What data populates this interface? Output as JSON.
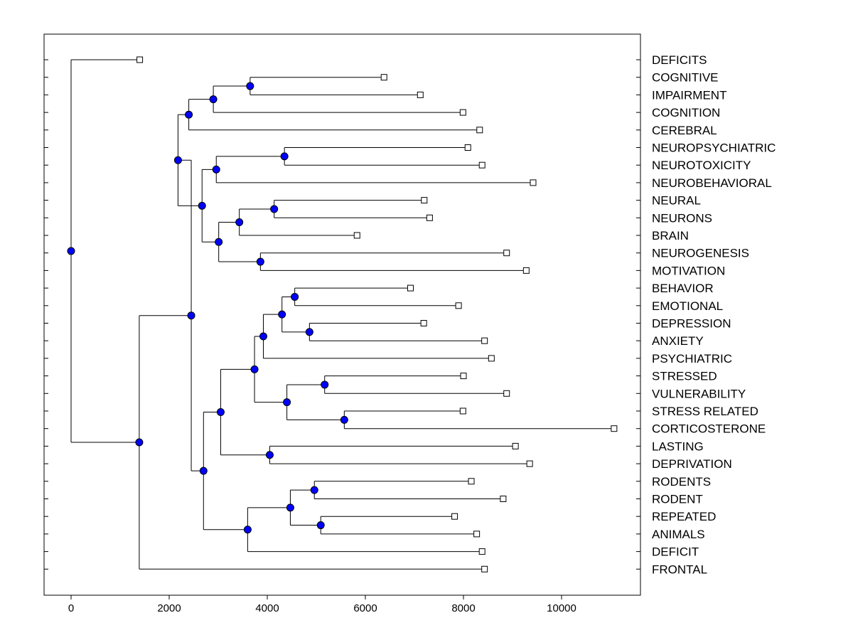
{
  "chart_data": {
    "type": "dendrogram",
    "title": "",
    "xlabel": "",
    "ylabel": "",
    "xlim": [
      -550,
      11600
    ],
    "xticks": [
      0,
      2000,
      4000,
      6000,
      8000,
      10000
    ],
    "xtick_labels": [
      "0",
      "2000",
      "4000",
      "6000",
      "8000",
      "10000"
    ],
    "colors": {
      "node": "#0000ff",
      "line": "#000000",
      "leaf_marker": "#ffffff"
    },
    "leaves": [
      {
        "label": "DEFICITS",
        "value": 1400
      },
      {
        "label": "COGNITIVE",
        "value": 6380
      },
      {
        "label": "IMPAIRMENT",
        "value": 7120
      },
      {
        "label": "COGNITION",
        "value": 7990
      },
      {
        "label": "CEREBRAL",
        "value": 8330
      },
      {
        "label": "NEUROPSYCHIATRIC",
        "value": 8090
      },
      {
        "label": "NEUROTOXICITY",
        "value": 8380
      },
      {
        "label": "NEUROBEHAVIORAL",
        "value": 9420
      },
      {
        "label": "NEURAL",
        "value": 7200
      },
      {
        "label": "NEURONS",
        "value": 7310
      },
      {
        "label": "BRAIN",
        "value": 5830
      },
      {
        "label": "NEUROGENESIS",
        "value": 8880
      },
      {
        "label": "MOTIVATION",
        "value": 9280
      },
      {
        "label": "BEHAVIOR",
        "value": 6920
      },
      {
        "label": "EMOTIONAL",
        "value": 7900
      },
      {
        "label": "DEPRESSION",
        "value": 7190
      },
      {
        "label": "ANXIETY",
        "value": 8430
      },
      {
        "label": "PSYCHIATRIC",
        "value": 8570
      },
      {
        "label": "STRESSED",
        "value": 8000
      },
      {
        "label": "VULNERABILITY",
        "value": 8880
      },
      {
        "label": "STRESS RELATED",
        "value": 7990
      },
      {
        "label": "CORTICOSTERONE",
        "value": 11070
      },
      {
        "label": "LASTING",
        "value": 9060
      },
      {
        "label": "DEPRIVATION",
        "value": 9350
      },
      {
        "label": "RODENTS",
        "value": 8160
      },
      {
        "label": "RODENT",
        "value": 8810
      },
      {
        "label": "REPEATED",
        "value": 7820
      },
      {
        "label": "ANIMALS",
        "value": 8270
      },
      {
        "label": "DEFICIT",
        "value": 8380
      },
      {
        "label": "FRONTAL",
        "value": 8430
      }
    ],
    "nodes": [
      {
        "id": "n_cog_imp",
        "value": 3650,
        "children": [
          "L1",
          "L2"
        ]
      },
      {
        "id": "n_cog3",
        "value": 2900,
        "children": [
          "n_cog_imp",
          "L3"
        ]
      },
      {
        "id": "n_cog4",
        "value": 2400,
        "children": [
          "n_cog3",
          "L4"
        ]
      },
      {
        "id": "n_npsy",
        "value": 4350,
        "children": [
          "L5",
          "L6"
        ]
      },
      {
        "id": "n_neuro3",
        "value": 2960,
        "children": [
          "n_npsy",
          "L7"
        ]
      },
      {
        "id": "n_neural",
        "value": 4140,
        "children": [
          "L8",
          "L9"
        ]
      },
      {
        "id": "n_brain3",
        "value": 3430,
        "children": [
          "n_neural",
          "L10"
        ]
      },
      {
        "id": "n_neurogen",
        "value": 3860,
        "children": [
          "L11",
          "L12"
        ]
      },
      {
        "id": "n_brain5",
        "value": 3010,
        "children": [
          "n_brain3",
          "n_neurogen"
        ]
      },
      {
        "id": "n_neuro8",
        "value": 2670,
        "children": [
          "n_neuro3",
          "n_brain5"
        ]
      },
      {
        "id": "n_upper",
        "value": 2180,
        "children": [
          "n_cog4",
          "n_neuro8"
        ]
      },
      {
        "id": "n_behav",
        "value": 4560,
        "children": [
          "L13",
          "L14"
        ]
      },
      {
        "id": "n_depr",
        "value": 4860,
        "children": [
          "L15",
          "L16"
        ]
      },
      {
        "id": "n_emo4",
        "value": 4300,
        "children": [
          "n_behav",
          "n_depr"
        ]
      },
      {
        "id": "n_emo5",
        "value": 3920,
        "children": [
          "n_emo4",
          "L17"
        ]
      },
      {
        "id": "n_stressed",
        "value": 5170,
        "children": [
          "L18",
          "L19"
        ]
      },
      {
        "id": "n_cort",
        "value": 5570,
        "children": [
          "L20",
          "L21"
        ]
      },
      {
        "id": "n_stress4",
        "value": 4400,
        "children": [
          "n_stressed",
          "n_cort"
        ]
      },
      {
        "id": "n_mid9",
        "value": 3740,
        "children": [
          "n_emo5",
          "n_stress4"
        ]
      },
      {
        "id": "n_lasting",
        "value": 4050,
        "children": [
          "L22",
          "L23"
        ]
      },
      {
        "id": "n_mid11",
        "value": 3050,
        "children": [
          "n_mid9",
          "n_lasting"
        ]
      },
      {
        "id": "n_rodents",
        "value": 4960,
        "children": [
          "L24",
          "L25"
        ]
      },
      {
        "id": "n_repeated",
        "value": 5090,
        "children": [
          "L26",
          "L27"
        ]
      },
      {
        "id": "n_rod4",
        "value": 4470,
        "children": [
          "n_rodents",
          "n_repeated"
        ]
      },
      {
        "id": "n_rod5",
        "value": 3600,
        "children": [
          "n_rod4",
          "L28"
        ]
      },
      {
        "id": "n_lower",
        "value": 2700,
        "children": [
          "n_mid11",
          "n_rod5"
        ]
      },
      {
        "id": "n_big",
        "value": 2450,
        "children": [
          "n_upper",
          "n_lower"
        ]
      },
      {
        "id": "n_all29",
        "value": 1390,
        "children": [
          "n_big",
          "L29"
        ]
      },
      {
        "id": "n_root",
        "value": 0,
        "children": [
          "L0",
          "n_all29"
        ]
      }
    ]
  }
}
